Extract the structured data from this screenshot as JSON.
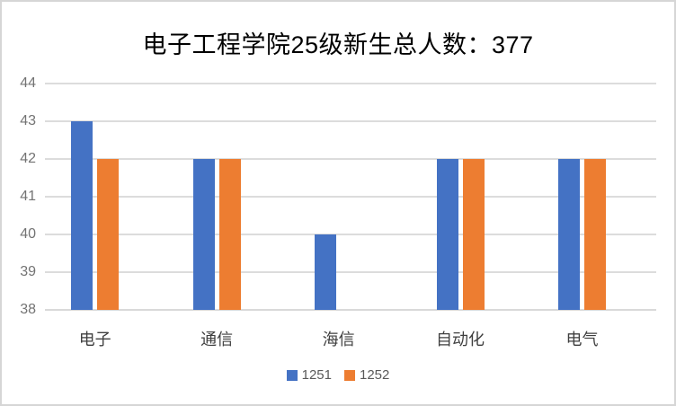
{
  "title": "电子工程学院25级新生总人数：377",
  "chart_data": {
    "type": "bar",
    "title": "电子工程学院25级新生总人数：377",
    "categories": [
      "电子",
      "通信",
      "海信",
      "自动化",
      "电气"
    ],
    "series": [
      {
        "name": "1251",
        "color": "#4472C4",
        "values": [
          43,
          42,
          40,
          42,
          42
        ]
      },
      {
        "name": "1252",
        "color": "#ED7D31",
        "values": [
          42,
          42,
          null,
          42,
          42
        ]
      }
    ],
    "xlabel": "",
    "ylabel": "",
    "ylim": [
      38,
      44
    ],
    "ytick_step": 1,
    "yticks": [
      38,
      39,
      40,
      41,
      42,
      43,
      44
    ],
    "grid": true,
    "gridline_color": "#dcdcdc",
    "legend_position": "bottom",
    "legend": [
      "1251",
      "1252"
    ],
    "total_shown_in_title": 377
  }
}
